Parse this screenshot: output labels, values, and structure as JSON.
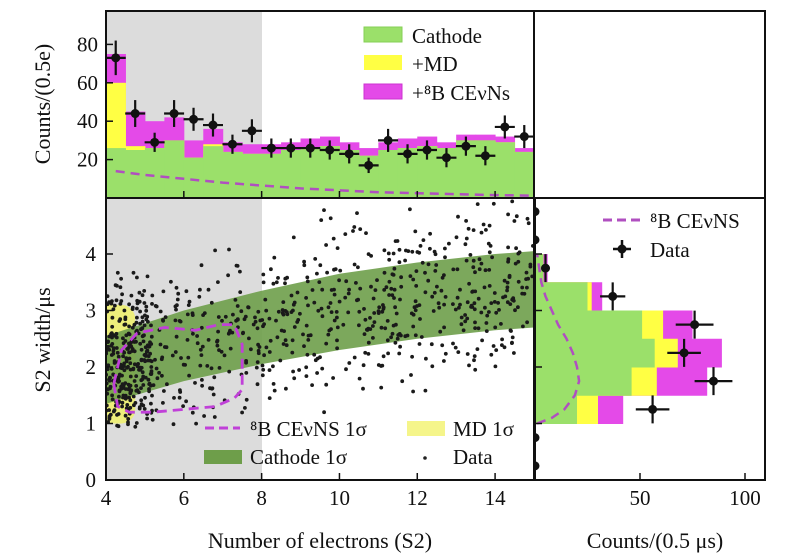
{
  "chart_data": [
    {
      "id": "top",
      "type": "bar",
      "title": "",
      "xlabel": "",
      "ylabel": "Counts/(0.5e)",
      "xlim": [
        4,
        15
      ],
      "ylim": [
        0,
        95
      ],
      "yticks": [
        20,
        40,
        60,
        80
      ],
      "xticks": [
        6,
        8,
        10,
        12,
        14
      ],
      "shaded_region": [
        4,
        8
      ],
      "bin_edges": [
        4,
        4.5,
        5,
        5.5,
        6,
        6.5,
        7,
        7.5,
        8,
        8.5,
        9,
        9.5,
        10,
        10.5,
        11,
        11.5,
        12,
        12.5,
        13,
        13.5,
        14,
        14.5,
        15
      ],
      "series": [
        {
          "name": "Cathode",
          "color": "#9be06a",
          "values": [
            26,
            25,
            26,
            30,
            21,
            27,
            24,
            23,
            23,
            25,
            26,
            27,
            25,
            22,
            25,
            26,
            27,
            26,
            30,
            30,
            29,
            24
          ]
        },
        {
          "name": "+MD",
          "color": "#ffff44",
          "values": [
            60,
            27,
            26,
            30,
            21,
            28,
            24,
            23,
            23,
            25,
            26,
            27,
            25,
            22,
            25,
            26,
            27,
            26,
            30,
            30,
            29,
            24
          ]
        },
        {
          "name": "+⁸B CEνNs",
          "color": "#e44ae8",
          "values": [
            75,
            45,
            40,
            42,
            30,
            36,
            29,
            28,
            28,
            29,
            31,
            32,
            29,
            26,
            29,
            31,
            32,
            29,
            33,
            33,
            32,
            26
          ]
        }
      ],
      "cevns_curve": {
        "name": "⁸B CEνNS",
        "x": [
          4.25,
          5,
          6,
          7,
          8,
          9,
          10,
          11,
          12,
          13,
          14,
          15
        ],
        "y": [
          14,
          12,
          10,
          8,
          6.5,
          5,
          4,
          3,
          2.5,
          2,
          1.5,
          1.2
        ]
      },
      "data_points": {
        "x": [
          4.25,
          4.75,
          5.25,
          5.75,
          6.25,
          6.75,
          7.25,
          7.75,
          8.25,
          8.75,
          9.25,
          9.75,
          10.25,
          10.75,
          11.25,
          11.75,
          12.25,
          12.75,
          13.25,
          13.75,
          14.25,
          14.75
        ],
        "y": [
          73,
          44,
          29,
          44,
          41,
          38,
          28,
          35,
          26,
          26,
          26,
          25,
          23,
          17,
          30,
          23,
          25,
          21,
          27,
          22,
          37,
          32
        ],
        "yerr": [
          9,
          7,
          5,
          7,
          6,
          6,
          5,
          6,
          5,
          5,
          5,
          5,
          5,
          4,
          6,
          5,
          5,
          5,
          5,
          5,
          6,
          6
        ]
      },
      "legend": {
        "placement": "top-right",
        "entries": [
          "Cathode",
          "+MD",
          "+⁸B CEνNs"
        ]
      }
    },
    {
      "id": "scatter",
      "type": "scatter",
      "xlabel": "Number of electrons (S2)",
      "ylabel": "S2 width/μs",
      "xlim": [
        4,
        15
      ],
      "ylim": [
        0,
        4.9
      ],
      "xticks": [
        4,
        6,
        8,
        10,
        12,
        14
      ],
      "yticks": [
        0,
        1,
        2,
        3,
        4
      ],
      "shaded_region": [
        4,
        8
      ],
      "cathode_band": {
        "x": [
          4,
          6,
          8,
          10,
          12,
          14,
          15
        ],
        "lower": [
          1.35,
          1.75,
          2.05,
          2.3,
          2.5,
          2.65,
          2.7
        ],
        "upper": [
          2.55,
          3.0,
          3.35,
          3.65,
          3.85,
          4.0,
          4.05
        ]
      },
      "md_band": {
        "x": [
          4,
          4.75
        ],
        "y": [
          1.0,
          3.1
        ]
      },
      "cevns_contour": {
        "x": [
          4.2,
          4.4,
          4.8,
          5.5,
          6.3,
          6.9,
          7.3,
          7.5,
          7.5,
          7.3,
          6.8,
          6.0,
          5.2,
          4.6,
          4.3,
          4.2
        ],
        "y": [
          1.7,
          2.3,
          2.6,
          2.7,
          2.65,
          2.75,
          2.75,
          2.4,
          1.6,
          1.45,
          1.3,
          1.25,
          1.2,
          1.2,
          1.3,
          1.7
        ]
      },
      "n_points": 900,
      "legend": {
        "placement": "bottom",
        "entries": [
          "⁸B CEνNS 1σ",
          "MD 1σ",
          "Cathode 1σ",
          "Data"
        ]
      }
    },
    {
      "id": "side",
      "type": "bar",
      "orientation": "horizontal",
      "xlabel": "Counts/(0.5 μs)",
      "xlim": [
        0,
        110
      ],
      "ylim": [
        0,
        4.9
      ],
      "xticks": [
        50,
        100
      ],
      "bin_edges": [
        1,
        1.5,
        2,
        2.5,
        3,
        3.5,
        4
      ],
      "series": [
        {
          "name": "Cathode",
          "values": [
            20,
            46,
            57,
            51,
            25,
            4
          ]
        },
        {
          "name": "+MD",
          "values": [
            30,
            58,
            68,
            61,
            27,
            4
          ]
        },
        {
          "name": "+⁸B CEνNs",
          "values": [
            42,
            82,
            89,
            75,
            32,
            6
          ]
        }
      ],
      "cevns_curve": {
        "y": [
          1.0,
          1.1,
          1.25,
          1.5,
          1.75,
          2.0,
          2.25,
          2.5,
          2.75,
          3.0,
          3.25,
          3.5,
          3.75,
          4.0
        ],
        "x": [
          1,
          8,
          14,
          19,
          21,
          20,
          18,
          15,
          11,
          8,
          5,
          3,
          2,
          1
        ]
      },
      "data_points": {
        "y": [
          0.25,
          0.75,
          1.25,
          1.75,
          2.25,
          2.75,
          3.25,
          3.75,
          4.25,
          4.75
        ],
        "x": [
          0,
          0,
          56,
          85,
          71,
          76,
          37,
          5,
          0,
          0
        ],
        "xerr": [
          0,
          0,
          8,
          9,
          8,
          9,
          6,
          2,
          0,
          0
        ]
      },
      "legend": {
        "placement": "top-right",
        "entries": [
          "⁸B CEνNS",
          "Data"
        ]
      }
    }
  ],
  "labels": {
    "top_ylabel": "Counts/(0.5e)",
    "bottom_ylabel": "S2 width/μs",
    "xlabel_main": "Number of electrons (S2)",
    "xlabel_side": "Counts/(0.5 μs)",
    "top_legend": [
      "Cathode",
      "+MD",
      "+⁸B CEνNs"
    ],
    "side_legend": [
      "⁸B CEνNS",
      "Data"
    ],
    "bottom_legend": [
      "⁸B CEνNS 1σ",
      "MD 1σ",
      "Cathode 1σ",
      "Data"
    ],
    "top_yticks": [
      "20",
      "40",
      "60",
      "80"
    ],
    "bottom_yticks": [
      "0",
      "1",
      "2",
      "3",
      "4"
    ],
    "main_xticks": [
      "4",
      "6",
      "8",
      "10",
      "12",
      "14"
    ],
    "side_xticks": [
      "50",
      "100"
    ]
  },
  "colors": {
    "cathode_hist": "#9be06a",
    "md": "#ffff44",
    "cevns": "#e44ae8",
    "cathode_band": "#6e9e4a",
    "shade": "#dcdcdc",
    "dashed": "#b04fc0"
  }
}
